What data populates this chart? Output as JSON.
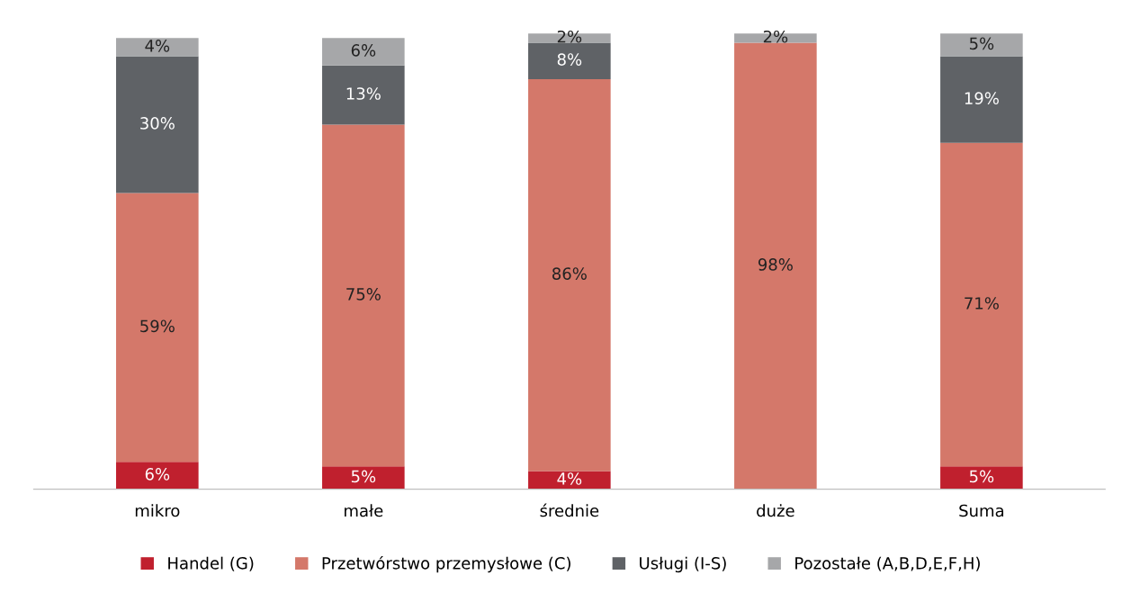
{
  "chart_data": {
    "type": "bar",
    "stacked": true,
    "legend": "bottom",
    "grid": false,
    "categories": [
      "mikro",
      "małe",
      "średnie",
      "duże",
      "Suma"
    ],
    "series": [
      {
        "name": "Handel (G)",
        "color": "#c0202e",
        "values": [
          6,
          5,
          4,
          null,
          5
        ],
        "value_labels": [
          "6%",
          "5%",
          "4%",
          null,
          "5%"
        ]
      },
      {
        "name": "Przetwórstwo przemysłowe (C)",
        "color": "#d4786a",
        "values": [
          59,
          75,
          86,
          98,
          71
        ],
        "value_labels": [
          "59%",
          "75%",
          "86%",
          "98%",
          "71%"
        ]
      },
      {
        "name": "Usługi (I-S)",
        "color": "#5f6266",
        "values": [
          30,
          13,
          8,
          null,
          19
        ],
        "value_labels": [
          "30%",
          "13%",
          "8%",
          null,
          "19%"
        ]
      },
      {
        "name": "Pozostałe (A,B,D,E,F,H)",
        "color": "#a6a7a9",
        "values": [
          4,
          6,
          2,
          2,
          5
        ],
        "value_labels": [
          "4%",
          "6%",
          "2%",
          "2%",
          "5%"
        ]
      }
    ]
  }
}
